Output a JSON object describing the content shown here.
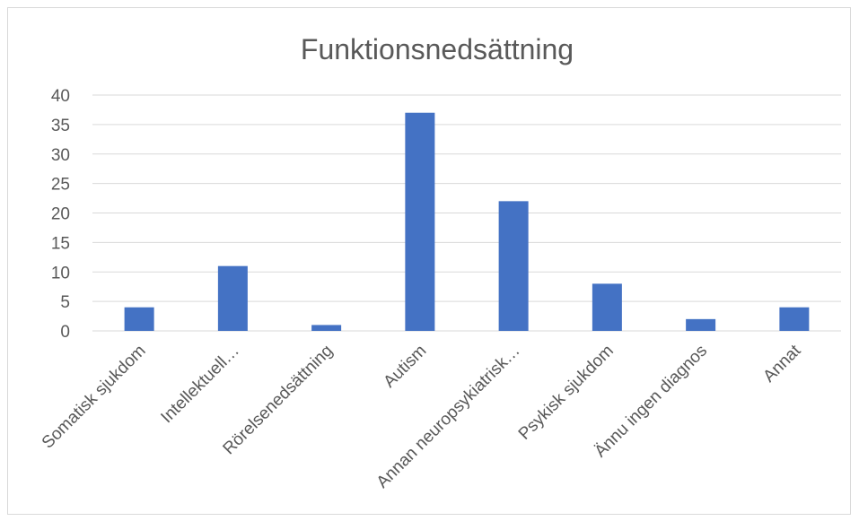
{
  "chart_data": {
    "type": "bar",
    "title": "Funktionsnedsättning",
    "categories": [
      "Somatisk sjukdom",
      "Intellektuell…",
      "Rörelsenedsättning",
      "Autism",
      "Annan neuropsykiatrisk…",
      "Psykisk sjukdom",
      "Ännu ingen diagnos",
      "Annat"
    ],
    "values": [
      4,
      11,
      1,
      37,
      22,
      8,
      2,
      4
    ],
    "ylim": [
      0,
      40
    ],
    "yticks": [
      0,
      5,
      10,
      15,
      20,
      25,
      30,
      35,
      40
    ],
    "xlabel": "",
    "ylabel": "",
    "grid": true,
    "legend": "none",
    "bar_color": "#4472c4"
  }
}
